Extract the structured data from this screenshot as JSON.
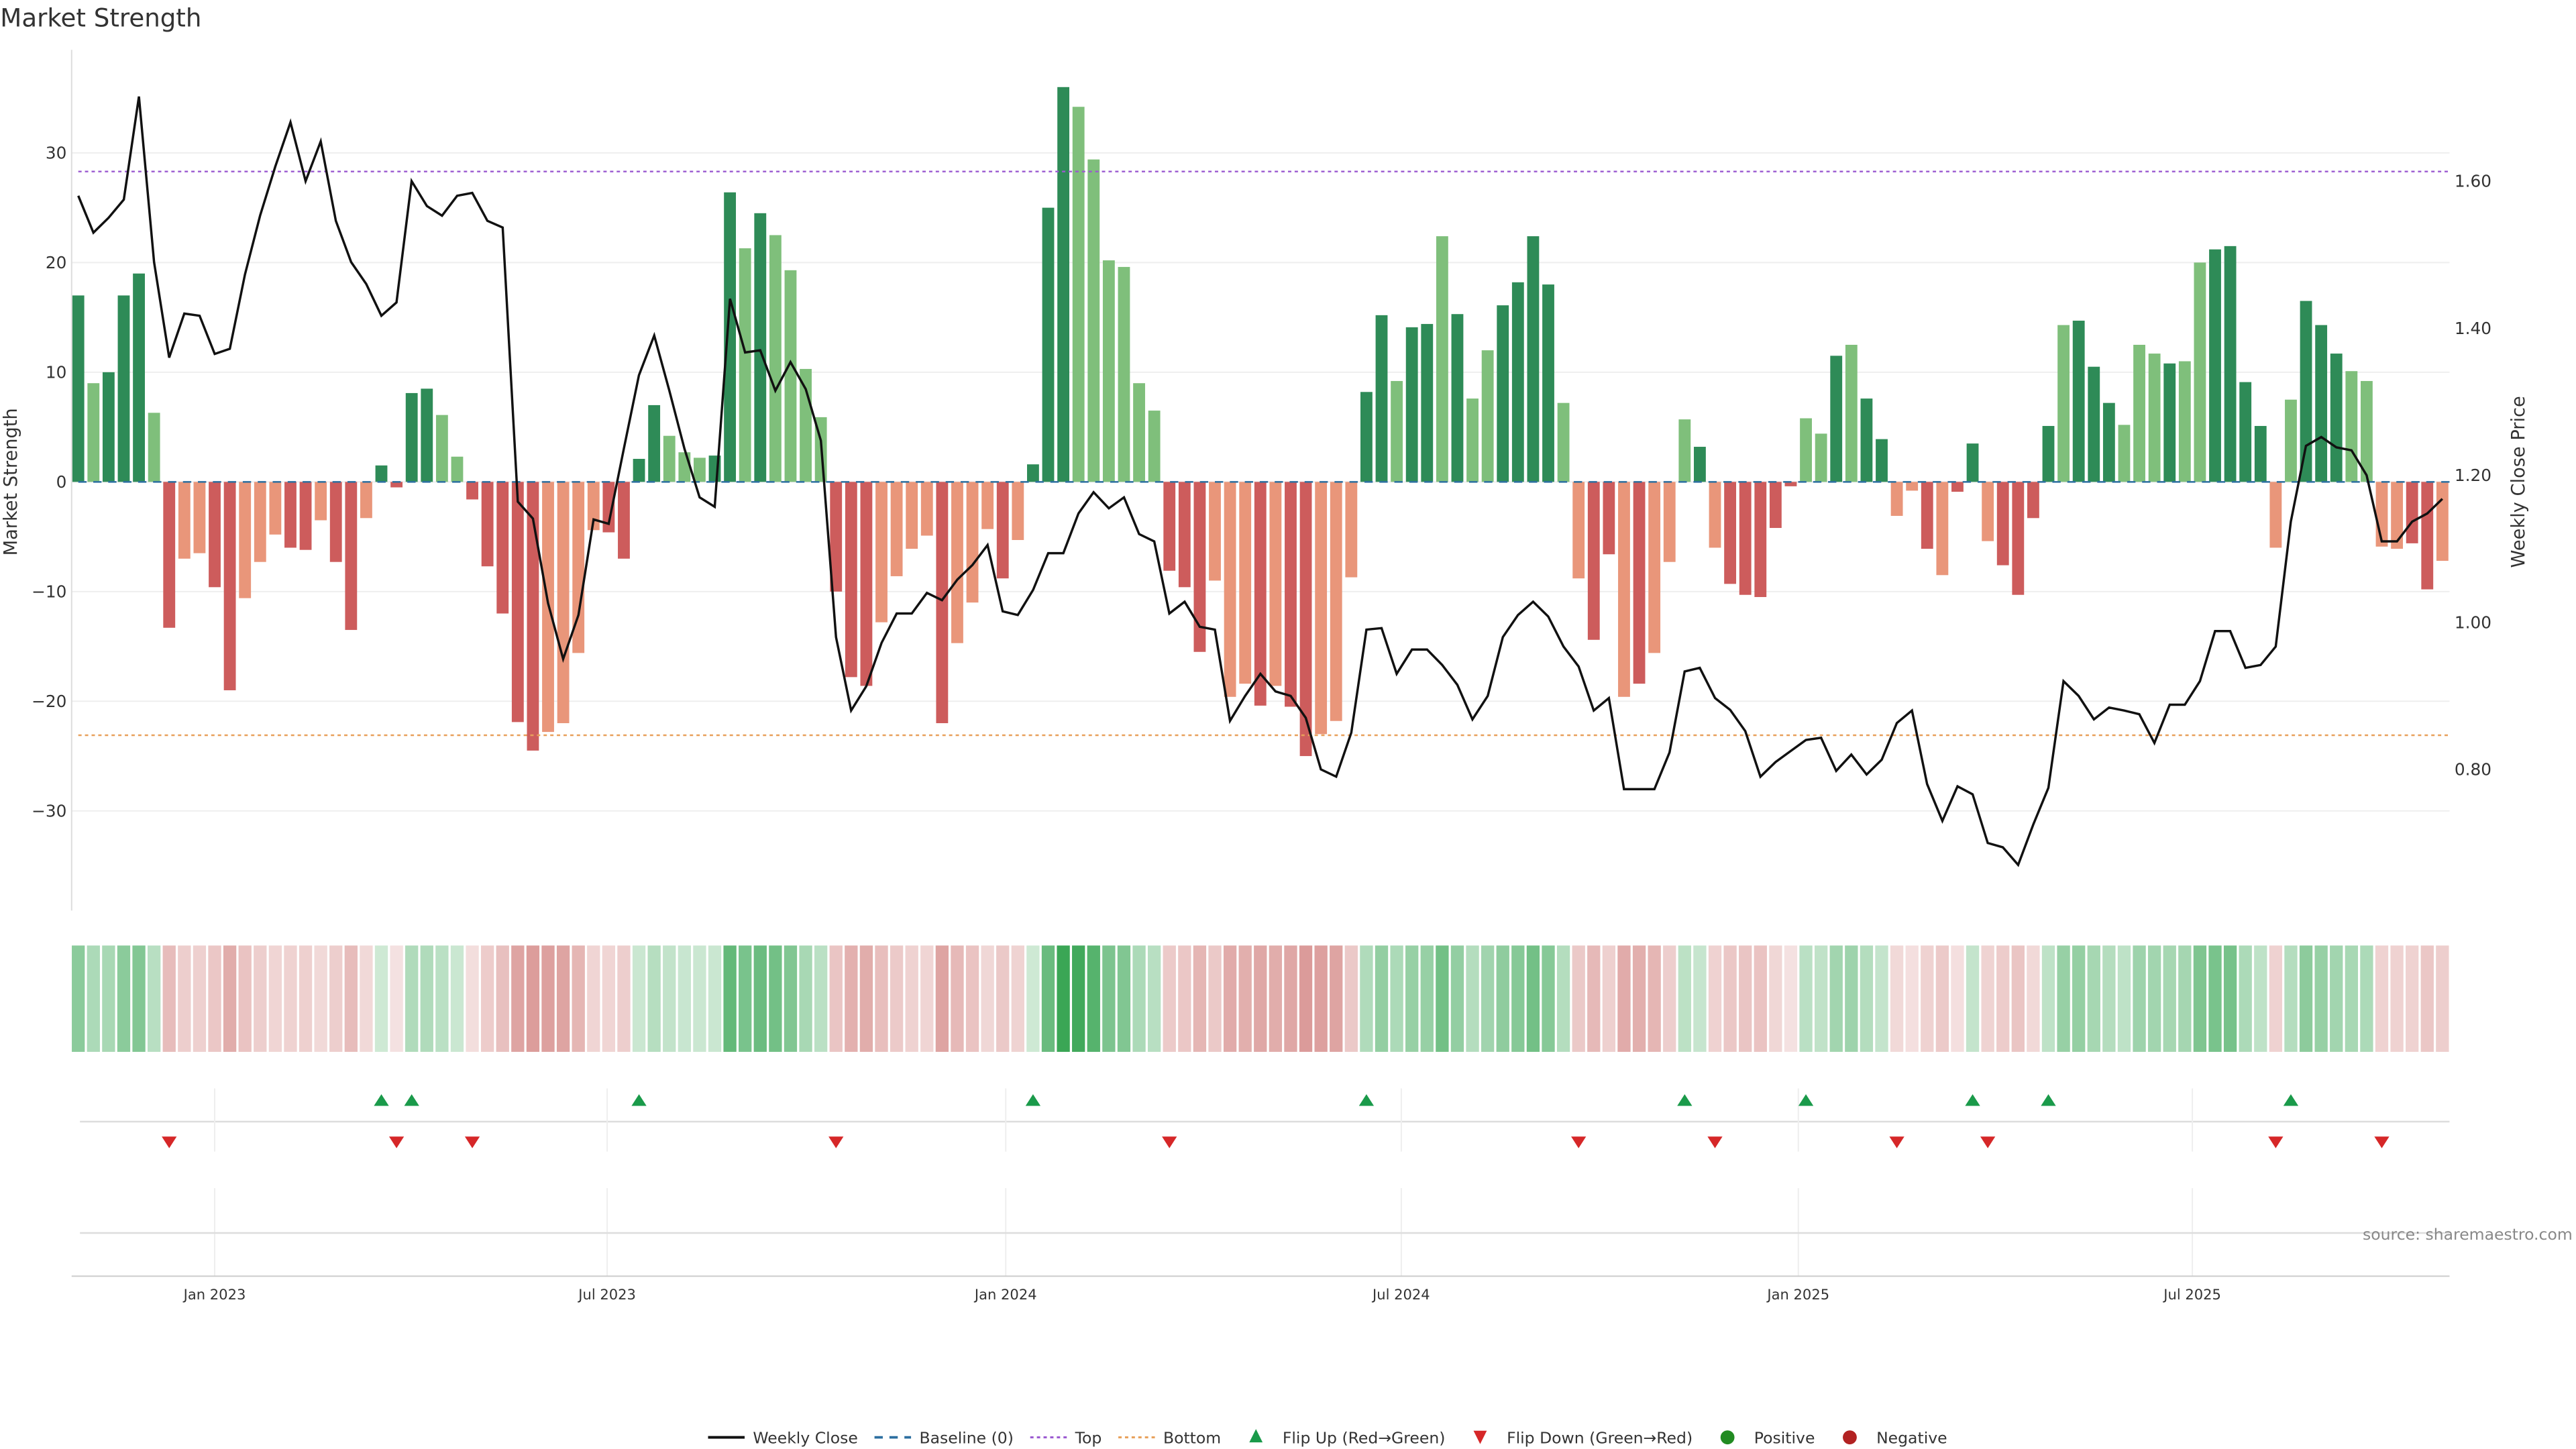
{
  "chart_data": {
    "type": "bar",
    "title": "Market Strength",
    "ylabel": "Market Strength",
    "y2label": "Weekly Close Price",
    "ylim": [
      -39,
      39
    ],
    "y2lim": [
      0.625,
      1.775
    ],
    "yticks": [
      -30,
      -20,
      -10,
      0,
      10,
      20,
      30
    ],
    "y2ticks": [
      0.8,
      1.0,
      1.2,
      1.4,
      1.6
    ],
    "xticks": [
      {
        "week": 9.0,
        "label": "Jan 2023"
      },
      {
        "week": 34.9,
        "label": "Jul 2023"
      },
      {
        "week": 61.2,
        "label": "Jan 2024"
      },
      {
        "week": 87.3,
        "label": "Jul 2024"
      },
      {
        "week": 113.5,
        "label": "Jan 2025"
      },
      {
        "week": 139.5,
        "label": "Jul 2025"
      }
    ],
    "top_threshold": 28.3,
    "bottom_threshold": -23.1,
    "baseline": 0,
    "strength": [
      17,
      9,
      10,
      17,
      19,
      6.3,
      -13.3,
      -7,
      -6.5,
      -9.6,
      -19,
      -10.6,
      -7.3,
      -4.8,
      -6,
      -6.2,
      -3.5,
      -7.3,
      -13.5,
      -3.3,
      1.5,
      -0.5,
      8.1,
      8.5,
      6.1,
      2.3,
      -1.6,
      -7.7,
      -12,
      -21.9,
      -24.5,
      -22.8,
      -22,
      -15.6,
      -4.4,
      -4.6,
      -7,
      2.1,
      7,
      4.2,
      2.7,
      2.2,
      2.4,
      26.4,
      21.3,
      24.5,
      22.5,
      19.3,
      10.3,
      5.9,
      -10,
      -17.8,
      -18.6,
      -12.8,
      -8.6,
      -6.1,
      -4.9,
      -22,
      -14.7,
      -11,
      -4.3,
      -8.8,
      -5.3,
      1.6,
      25,
      36,
      34.2,
      29.4,
      20.2,
      19.6,
      9,
      6.5,
      -8.1,
      -9.6,
      -15.5,
      -9,
      -19.6,
      -18.4,
      -20.4,
      -18.6,
      -20.5,
      -25,
      -23,
      -21.8,
      -8.7,
      8.2,
      15.2,
      9.2,
      14.1,
      14.4,
      22.4,
      15.3,
      7.6,
      12,
      16.1,
      18.2,
      22.4,
      18,
      7.2,
      -8.8,
      -14.4,
      -6.6,
      -19.6,
      -18.4,
      -15.6,
      -7.3,
      5.7,
      3.2,
      -6,
      -9.3,
      -10.3,
      -10.5,
      -4.2,
      -0.4,
      5.8,
      4.4,
      11.5,
      12.5,
      7.6,
      3.9,
      -3.1,
      -0.8,
      -6.1,
      -8.5,
      -0.9,
      3.5,
      -5.4,
      -7.6,
      -10.3,
      -3.3,
      5.1,
      14.3,
      14.7,
      10.5,
      7.2,
      5.2,
      12.5,
      11.7,
      10.8,
      11,
      20,
      21.2,
      21.5,
      9.1,
      5.1,
      -6,
      7.5,
      16.5,
      14.3,
      11.7,
      10.1,
      9.2,
      -5.9,
      -6.1,
      -5.6,
      -9.8,
      -7.2
    ],
    "tones": "dldddldllddlllddlddlddddlldddddllllddddlllddldlllldddlllldllldldddlllllldddllldlddlllddlddldllddddllddldllldldddddlldlddlldlddlddddldddllldllddddlldddllllddldl",
    "close": [
      1.58,
      1.53,
      1.55,
      1.575,
      1.715,
      1.49,
      1.36,
      1.42,
      1.417,
      1.365,
      1.372,
      1.473,
      1.553,
      1.62,
      1.68,
      1.6,
      1.654,
      1.546,
      1.49,
      1.46,
      1.417,
      1.435,
      1.6,
      1.566,
      1.553,
      1.58,
      1.584,
      1.546,
      1.537,
      1.164,
      1.141,
      1.026,
      0.95,
      1.01,
      1.14,
      1.134,
      1.236,
      1.336,
      1.39,
      1.315,
      1.236,
      1.17,
      1.157,
      1.44,
      1.367,
      1.37,
      1.315,
      1.354,
      1.317,
      1.247,
      0.98,
      0.88,
      0.913,
      0.972,
      1.012,
      1.012,
      1.04,
      1.03,
      1.058,
      1.078,
      1.105,
      1.015,
      1.01,
      1.044,
      1.094,
      1.094,
      1.148,
      1.177,
      1.155,
      1.17,
      1.12,
      1.11,
      1.012,
      1.028,
      0.994,
      0.99,
      0.866,
      0.9,
      0.93,
      0.906,
      0.9,
      0.87,
      0.8,
      0.79,
      0.85,
      0.99,
      0.992,
      0.93,
      0.963,
      0.963,
      0.942,
      0.915,
      0.868,
      0.9,
      0.98,
      1.01,
      1.028,
      1.008,
      0.967,
      0.94,
      0.88,
      0.897,
      0.773,
      0.773,
      0.773,
      0.823,
      0.933,
      0.938,
      0.897,
      0.881,
      0.852,
      0.79,
      0.81,
      0.825,
      0.84,
      0.843,
      0.798,
      0.82,
      0.793,
      0.813,
      0.863,
      0.88,
      0.78,
      0.73,
      0.777,
      0.766,
      0.7,
      0.694,
      0.67,
      0.725,
      0.775,
      0.92,
      0.9,
      0.868,
      0.884,
      0.88,
      0.875,
      0.836,
      0.888,
      0.888,
      0.92,
      0.988,
      0.988,
      0.938,
      0.942,
      0.967,
      1.137,
      1.24,
      1.252,
      1.238,
      1.234,
      1.2,
      1.11,
      1.11,
      1.137,
      1.148,
      1.168
    ],
    "flip_up_weeks": [
      20,
      22,
      37,
      63,
      85,
      106,
      114,
      125,
      130,
      146
    ],
    "flip_down_weeks": [
      6,
      21,
      26,
      50,
      72,
      99,
      108,
      120,
      126,
      145,
      152
    ],
    "legend": [
      "Weekly Close",
      "Baseline (0)",
      "Top",
      "Bottom",
      "Flip Up (Red→Green)",
      "Flip Down (Green→Red)",
      "Positive",
      "Negative"
    ],
    "legend_placement": "bottom-center"
  },
  "colors": {
    "strong_pos": "#2e8b57",
    "weak_pos": "#7fbf7b",
    "strong_neg": "#cd5c5c",
    "weak_neg": "#e9967a",
    "top": "#9b59d0",
    "bottom": "#e8a05a",
    "baseline": "#2c6fa0",
    "flip_up": "#1a9a4a",
    "flip_down": "#d62728",
    "positive": "#228b22",
    "negative": "#b22222"
  },
  "source": "source: sharemaestro.com"
}
